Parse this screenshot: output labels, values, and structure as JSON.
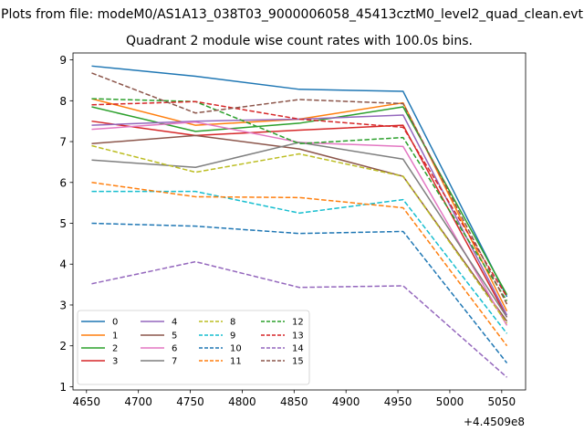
{
  "chart_data": {
    "type": "line",
    "suptitle": "Plots from file: modeM0/AS1A13_038T03_9000006058_45413cztM0_level2_quad_clean.evt",
    "title": "Quadrant 2 module wise count rates with 100.0s bins.",
    "xlabel": "",
    "ylabel": "",
    "x_offset_label": "+4.4509e8",
    "x": [
      4655,
      4755,
      4855,
      4955,
      5055
    ],
    "xlim": [
      4637,
      5073
    ],
    "ylim": [
      0.92,
      9.17
    ],
    "x_ticks": [
      4650,
      4700,
      4750,
      4800,
      4850,
      4900,
      4950,
      5000,
      5050
    ],
    "y_ticks": [
      1,
      2,
      3,
      4,
      5,
      6,
      7,
      8,
      9
    ],
    "grid": false,
    "legend": {
      "placement": "lower-left",
      "columns": 4
    },
    "series": [
      {
        "name": "0",
        "color": "#1f77b4",
        "dash": "solid",
        "values": [
          8.85,
          8.6,
          8.28,
          8.23,
          3.2
        ]
      },
      {
        "name": "1",
        "color": "#ff7f0e",
        "dash": "solid",
        "values": [
          8.05,
          7.4,
          7.55,
          7.95,
          2.85
        ]
      },
      {
        "name": "2",
        "color": "#2ca02c",
        "dash": "solid",
        "values": [
          7.85,
          7.25,
          7.45,
          7.85,
          3.25
        ]
      },
      {
        "name": "3",
        "color": "#d62728",
        "dash": "solid",
        "values": [
          7.5,
          7.15,
          7.28,
          7.4,
          2.7
        ]
      },
      {
        "name": "4",
        "color": "#9467bd",
        "dash": "solid",
        "values": [
          7.4,
          7.5,
          7.55,
          7.65,
          2.75
        ]
      },
      {
        "name": "5",
        "color": "#8c564b",
        "dash": "solid",
        "values": [
          6.95,
          7.15,
          6.82,
          6.15,
          2.6
        ]
      },
      {
        "name": "6",
        "color": "#e377c2",
        "dash": "solid",
        "values": [
          7.3,
          7.48,
          6.98,
          6.88,
          2.5
        ]
      },
      {
        "name": "7",
        "color": "#7f7f7f",
        "dash": "solid",
        "values": [
          6.55,
          6.37,
          6.98,
          6.57,
          2.7
        ]
      },
      {
        "name": "8",
        "color": "#bcbd22",
        "dash": "dashed",
        "values": [
          6.9,
          6.25,
          6.7,
          6.15,
          2.55
        ]
      },
      {
        "name": "9",
        "color": "#17becf",
        "dash": "dashed",
        "values": [
          5.78,
          5.78,
          5.25,
          5.58,
          2.3
        ]
      },
      {
        "name": "10",
        "color": "#1f77b4",
        "dash": "dashed",
        "values": [
          5.0,
          4.93,
          4.75,
          4.8,
          1.58
        ]
      },
      {
        "name": "11",
        "color": "#ff7f0e",
        "dash": "dashed",
        "values": [
          6.0,
          5.65,
          5.63,
          5.38,
          2.0
        ]
      },
      {
        "name": "12",
        "color": "#2ca02c",
        "dash": "dashed",
        "values": [
          8.05,
          7.98,
          6.95,
          7.1,
          3.1
        ]
      },
      {
        "name": "13",
        "color": "#d62728",
        "dash": "dashed",
        "values": [
          7.9,
          7.98,
          7.55,
          7.35,
          3.2
        ]
      },
      {
        "name": "14",
        "color": "#9467bd",
        "dash": "dashed",
        "values": [
          3.52,
          4.06,
          3.43,
          3.47,
          1.23
        ]
      },
      {
        "name": "15",
        "color": "#8c564b",
        "dash": "dashed",
        "values": [
          8.68,
          7.7,
          8.03,
          7.93,
          3.02
        ]
      }
    ]
  }
}
